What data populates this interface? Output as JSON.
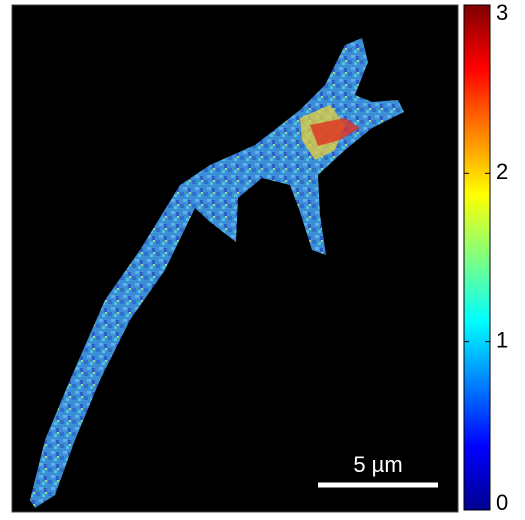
{
  "colorbar": {
    "range": [
      0,
      3
    ],
    "ticks": [
      0,
      1,
      2,
      3
    ]
  },
  "scale_bar": {
    "label": "5 µm"
  }
}
